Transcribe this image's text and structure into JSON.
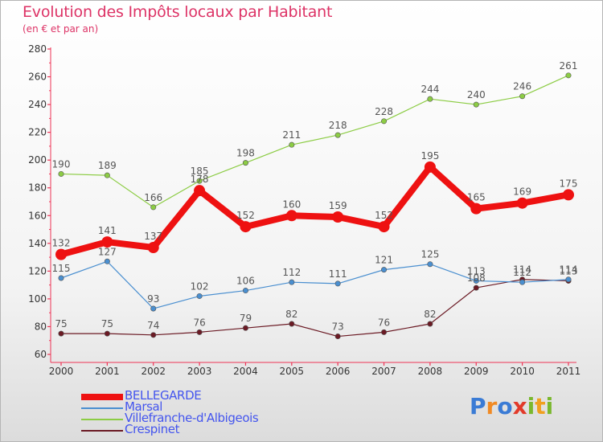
{
  "title": "Evolution des Impôts locaux par Habitant",
  "subtitle": "(en € et par an)",
  "logo": {
    "text": "Proxiti",
    "letter_colors": [
      "#3a7bd5",
      "#f08a24",
      "#3a7bd5",
      "#e23a2a",
      "#7ab82e",
      "#f0a020",
      "#7ab82e"
    ]
  },
  "chart_data": {
    "type": "line",
    "x": [
      "2000",
      "2001",
      "2002",
      "2003",
      "2004",
      "2005",
      "2006",
      "2007",
      "2008",
      "2009",
      "2010",
      "2011"
    ],
    "ylim": [
      60,
      280
    ],
    "yticks": [
      60,
      80,
      100,
      120,
      140,
      160,
      180,
      200,
      220,
      240,
      260,
      280
    ],
    "grid": false,
    "legend_position": "bottom-left",
    "series": [
      {
        "name": "Crespinet",
        "color": "#6b1a24",
        "values": [
          75,
          75,
          74,
          76,
          79,
          82,
          73,
          76,
          82,
          108,
          114,
          113
        ],
        "labels": [
          "75",
          "75",
          "74",
          "76",
          "79",
          "82",
          "73",
          "76",
          "82",
          "108",
          "114",
          "113"
        ]
      },
      {
        "name": "Marsal",
        "color": "#4a8fd0",
        "values": [
          115,
          127,
          93,
          102,
          106,
          112,
          111,
          121,
          125,
          113,
          112,
          114
        ],
        "labels": [
          "115",
          "127",
          "93",
          "102",
          "106",
          "112",
          "111",
          "121",
          "125",
          "113",
          "112",
          "114"
        ]
      },
      {
        "name": "Villefranche-d'Albigeois",
        "color": "#8ccc44",
        "values": [
          190,
          189,
          166,
          185,
          198,
          211,
          218,
          228,
          244,
          240,
          246,
          261
        ],
        "labels": [
          "190",
          "189",
          "166",
          "185",
          "198",
          "211",
          "218",
          "228",
          "244",
          "240",
          "246",
          "261"
        ]
      },
      {
        "name": "BELLEGARDE",
        "color": "#ee1111",
        "values": [
          132,
          141,
          137,
          178,
          152,
          160,
          159,
          152,
          195,
          165,
          169,
          175
        ],
        "labels": [
          "132",
          "141",
          "137",
          "178",
          "152",
          "160",
          "159",
          "152",
          "195",
          "165",
          "169",
          "175"
        ]
      }
    ],
    "legend": [
      {
        "name": "BELLEGARDE",
        "color": "#ee1111",
        "text_color": "#4455ee"
      },
      {
        "name": "Marsal",
        "color": "#4a8fd0",
        "text_color": "#4455ee"
      },
      {
        "name": "Villefranche-d'Albigeois",
        "color": "#8ccc44",
        "text_color": "#4455ee"
      },
      {
        "name": "Crespinet",
        "color": "#6b1a24",
        "text_color": "#4455ee"
      }
    ]
  }
}
